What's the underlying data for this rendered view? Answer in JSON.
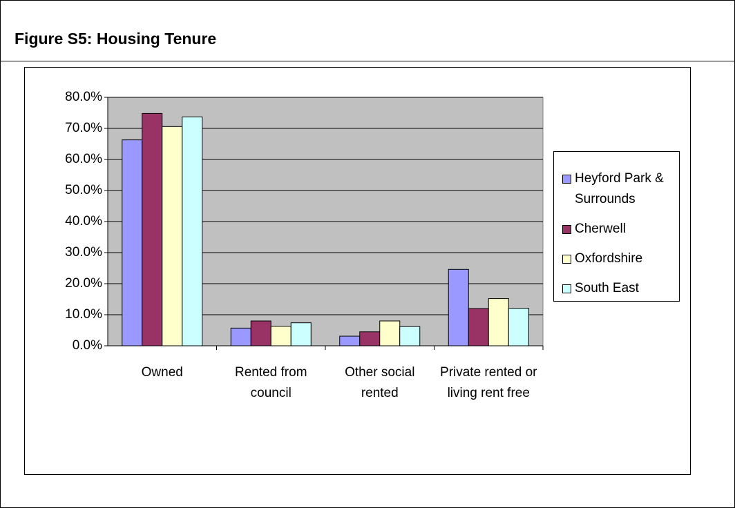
{
  "header": {
    "title": "Figure S5:  Housing Tenure"
  },
  "chart_data": {
    "type": "bar",
    "categories": [
      "Owned",
      "Rented from council",
      "Other social rented",
      "Private rented or living rent free"
    ],
    "series": [
      {
        "name": "Heyford Park & Surrounds",
        "color": "#9999ff",
        "values": [
          66.3,
          5.7,
          3.1,
          24.6
        ]
      },
      {
        "name": "Cherwell",
        "color": "#993366",
        "values": [
          74.8,
          8.0,
          4.5,
          12.0
        ]
      },
      {
        "name": "Oxfordshire",
        "color": "#ffffcc",
        "values": [
          70.6,
          6.3,
          8.0,
          15.2
        ]
      },
      {
        "name": "South East",
        "color": "#ccffff",
        "values": [
          73.7,
          7.4,
          6.2,
          12.1
        ]
      }
    ],
    "ylim": [
      0,
      80
    ],
    "yticks": [
      {
        "value": 0,
        "label": "0.0%"
      },
      {
        "value": 10,
        "label": "10.0%"
      },
      {
        "value": 20,
        "label": "20.0%"
      },
      {
        "value": 30,
        "label": "30.0%"
      },
      {
        "value": 40,
        "label": "40.0%"
      },
      {
        "value": 50,
        "label": "50.0%"
      },
      {
        "value": 60,
        "label": "60.0%"
      },
      {
        "value": 70,
        "label": "70.0%"
      },
      {
        "value": 80,
        "label": "80.0%"
      }
    ],
    "grid": true,
    "plot_background": "#c0c0c0",
    "legend": "right"
  }
}
